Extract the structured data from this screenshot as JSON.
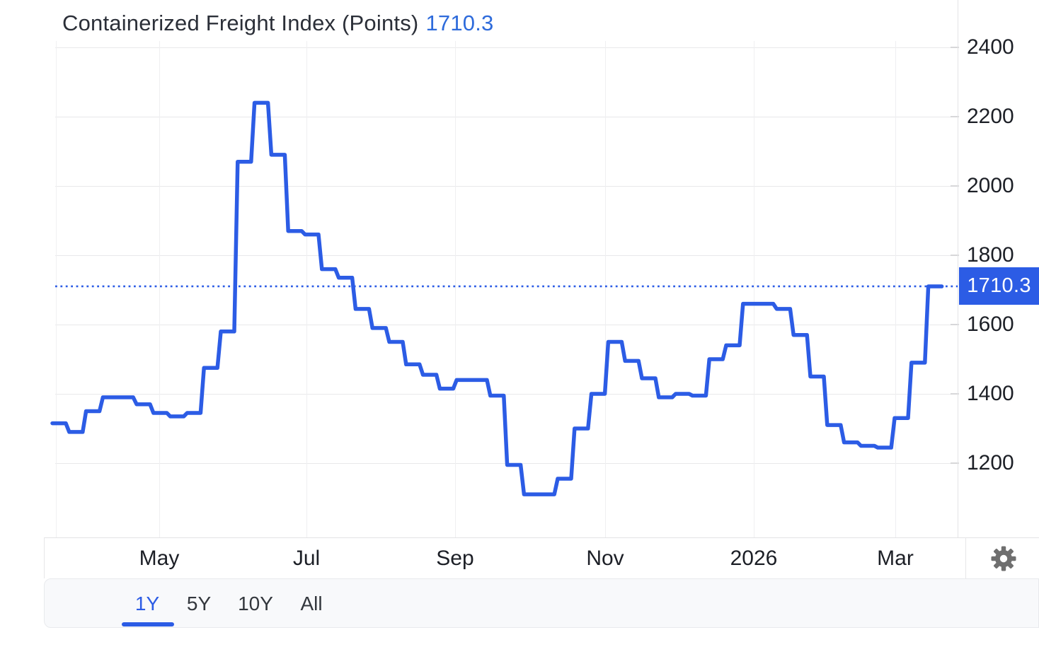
{
  "header": {
    "title": "Containerized Freight Index (Points)",
    "current_value": "1710.3"
  },
  "value_badge": {
    "text": "1710.3"
  },
  "toolbar": {
    "ranges": [
      {
        "label": "1Y",
        "active": true
      },
      {
        "label": "5Y",
        "active": false
      },
      {
        "label": "10Y",
        "active": false
      },
      {
        "label": "All",
        "active": false
      }
    ]
  },
  "icons": {
    "settings": "gear-icon"
  },
  "colors": {
    "accent": "#2c5ce5",
    "title_value": "#2e6bdb",
    "badge_bg": "#2c5ce5",
    "badge_text": "#ffffff",
    "grid": "#e8e8ea",
    "axis_text": "#1c1f26",
    "gear": "#6f6f6f"
  },
  "chart_data": {
    "type": "line",
    "line_style": "step",
    "title": "Containerized Freight Index (Points)",
    "unit": "Points",
    "current_value": 1710.3,
    "current_value_line": "dotted",
    "legend": "none",
    "grid": true,
    "x_tick_labels": [
      "May",
      "Jul",
      "Sep",
      "Nov",
      "2026",
      "Mar"
    ],
    "y_tick_labels": [
      2400,
      2200,
      2000,
      1800,
      1600,
      1400,
      1200
    ],
    "ylim": [
      990,
      2535
    ],
    "x_range_note": "1 year of weekly values, ~Apr 2025 to ~Mar 2026",
    "series": [
      {
        "name": "Containerized Freight Index",
        "color": "#2c5ce5",
        "values": [
          1315,
          1290,
          1350,
          1390,
          1390,
          1370,
          1345,
          1335,
          1345,
          1475,
          1580,
          2070,
          2240,
          2090,
          1870,
          1860,
          1760,
          1735,
          1645,
          1590,
          1550,
          1485,
          1455,
          1415,
          1440,
          1440,
          1395,
          1195,
          1110,
          1110,
          1155,
          1300,
          1400,
          1550,
          1495,
          1445,
          1390,
          1400,
          1395,
          1500,
          1540,
          1660,
          1660,
          1645,
          1570,
          1450,
          1310,
          1260,
          1250,
          1245,
          1330,
          1490,
          1710.3
        ]
      }
    ]
  }
}
